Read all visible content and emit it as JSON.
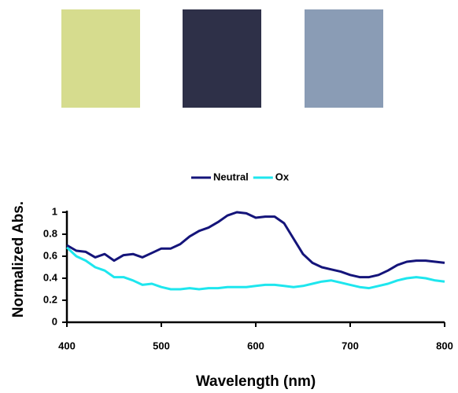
{
  "chart_data": {
    "type": "line",
    "x": [
      400,
      410,
      420,
      430,
      440,
      450,
      460,
      470,
      480,
      490,
      500,
      510,
      520,
      530,
      540,
      550,
      560,
      570,
      580,
      590,
      600,
      610,
      620,
      630,
      640,
      650,
      660,
      670,
      680,
      690,
      700,
      710,
      720,
      730,
      740,
      750,
      760,
      770,
      780,
      790,
      800
    ],
    "series": [
      {
        "name": "Neutral",
        "color": "#14147a",
        "values": [
          0.7,
          0.65,
          0.64,
          0.59,
          0.62,
          0.56,
          0.61,
          0.62,
          0.59,
          0.63,
          0.67,
          0.67,
          0.71,
          0.78,
          0.83,
          0.86,
          0.91,
          0.97,
          1.0,
          0.99,
          0.95,
          0.96,
          0.96,
          0.9,
          0.76,
          0.62,
          0.54,
          0.5,
          0.48,
          0.46,
          0.43,
          0.41,
          0.41,
          0.43,
          0.47,
          0.52,
          0.55,
          0.56,
          0.56,
          0.55,
          0.54
        ]
      },
      {
        "name": "Ox",
        "color": "#1ee6ee",
        "values": [
          0.68,
          0.6,
          0.56,
          0.5,
          0.47,
          0.41,
          0.41,
          0.38,
          0.34,
          0.35,
          0.32,
          0.3,
          0.3,
          0.31,
          0.3,
          0.31,
          0.31,
          0.32,
          0.32,
          0.32,
          0.33,
          0.34,
          0.34,
          0.33,
          0.32,
          0.33,
          0.35,
          0.37,
          0.38,
          0.36,
          0.34,
          0.32,
          0.31,
          0.33,
          0.35,
          0.38,
          0.4,
          0.41,
          0.4,
          0.38,
          0.37
        ]
      }
    ],
    "xlabel": "Wavelength (nm)",
    "ylabel": "Normalized Abs.",
    "xlim": [
      400,
      800
    ],
    "xticks": [
      400,
      500,
      600,
      700,
      800
    ],
    "ylim": [
      0,
      1
    ],
    "yticks": [
      0,
      0.2,
      0.4,
      0.6,
      0.8,
      1
    ],
    "grid": false,
    "legend": "top"
  }
}
